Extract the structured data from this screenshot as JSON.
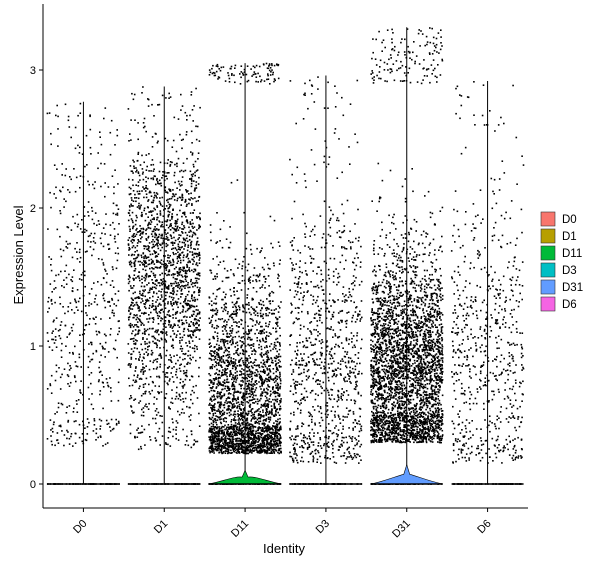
{
  "chart_data": {
    "type": "violin",
    "title": "",
    "xlabel": "Identity",
    "ylabel": "Expression Level",
    "ylim": [
      -0.18,
      3.43
    ],
    "yticks": [
      0,
      1,
      2,
      3
    ],
    "grid": false,
    "legend_position": "right",
    "categories": [
      "D0",
      "D1",
      "D11",
      "D3",
      "D31",
      "D6"
    ],
    "series": [
      {
        "name": "D0",
        "color": "#F8766D",
        "max": 2.77,
        "jitter_points": 550,
        "zero_violin_height": 0.0
      },
      {
        "name": "D1",
        "color": "#B79F00",
        "max": 2.88,
        "jitter_points": 1900,
        "zero_violin_height": 0.0
      },
      {
        "name": "D11",
        "color": "#00BA38",
        "max": 3.05,
        "jitter_points": 2700,
        "zero_violin_height": 0.1
      },
      {
        "name": "D3",
        "color": "#00BFC4",
        "max": 2.96,
        "jitter_points": 950,
        "zero_violin_height": 0.0
      },
      {
        "name": "D31",
        "color": "#619CFF",
        "max": 3.31,
        "jitter_points": 3400,
        "zero_violin_height": 0.14
      },
      {
        "name": "D6",
        "color": "#F564E3",
        "max": 2.92,
        "jitter_points": 650,
        "zero_violin_height": 0.0
      }
    ],
    "legend": [
      "D0",
      "D1",
      "D11",
      "D3",
      "D31",
      "D6"
    ]
  }
}
